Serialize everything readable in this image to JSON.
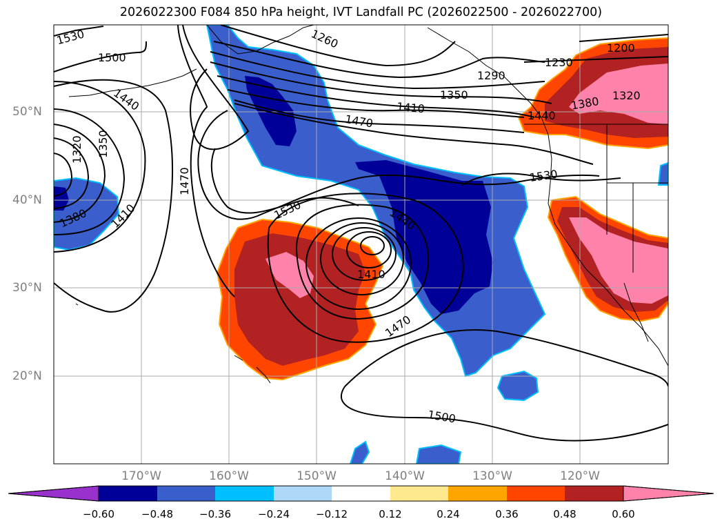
{
  "title": "2026022300 F084 850 hPa height, IVT Landfall PC (2026022500 - 2026022700)",
  "colors": {
    "neg_060": "#9932cc",
    "neg_048": "#000099",
    "neg_036": "#3a5fcd",
    "neg_024": "#00bfff",
    "neg_012": "#add8f7",
    "zero": "#ffffff",
    "pos_012": "#ffe98f",
    "pos_024": "#ffa500",
    "pos_036": "#ff4500",
    "pos_048": "#b22222",
    "pos_060": "#ff82ab",
    "grid": "#aaaaaa",
    "axis_label": "#7f7f7f"
  },
  "map": {
    "lat_labels": [
      "50°N",
      "40°N",
      "30°N",
      "20°N"
    ],
    "lon_labels": [
      "170°W",
      "160°W",
      "150°W",
      "140°W",
      "130°W",
      "120°W"
    ],
    "contour_labels": {
      "c1530_nw": "1530",
      "c1500_nw": "1500",
      "c1440_w": "1440",
      "c1320_w": "1320",
      "c1350_w": "1350",
      "c1380_w": "1380",
      "c1410_w": "1410",
      "c1470_w": "1470",
      "c1260_n": "1260",
      "c1230_ne": "1230",
      "c1200_ne": "1200",
      "c1290_ne": "1290",
      "c1350_n": "1350",
      "c1410_n": "1410",
      "c1470_n": "1470",
      "c1380_ne": "1380",
      "c1320_ne": "1320",
      "c1440_ne": "1440",
      "c1530_c": "1530",
      "c1530_e": "1530",
      "c1440_low": "1440",
      "c1410_low": "1410",
      "c1470_s": "1470",
      "c1500_s": "1500"
    }
  },
  "colorbar": {
    "ticks": [
      "−0.60",
      "−0.48",
      "−0.36",
      "−0.24",
      "−0.12",
      "0.12",
      "0.24",
      "0.36",
      "0.48",
      "0.60"
    ]
  }
}
